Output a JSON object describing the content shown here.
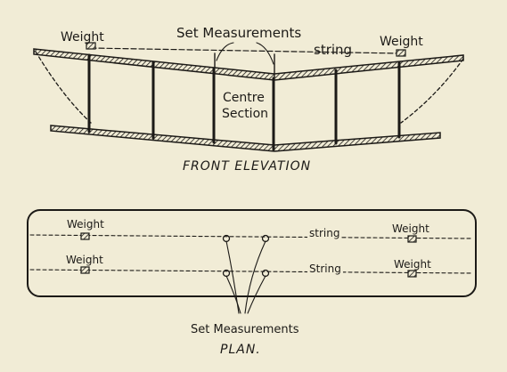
{
  "front": {
    "weight_left": "Weight",
    "weight_right": "Weight",
    "set_measurements": "Set Measurements",
    "string": "string",
    "centre_line1": "Centre",
    "centre_line2": "Section",
    "caption": "FRONT ELEVATION"
  },
  "plan": {
    "weight_top_left": "Weight",
    "weight_top_right": "Weight",
    "weight_bottom_left": "Weight",
    "weight_bottom_right": "Weight",
    "string_top": "string",
    "string_bottom": "String",
    "set_measurements": "Set Measurements",
    "caption": "PLAN."
  },
  "colors": {
    "paper": "#f1ecd6",
    "ink": "#1c1a17"
  }
}
